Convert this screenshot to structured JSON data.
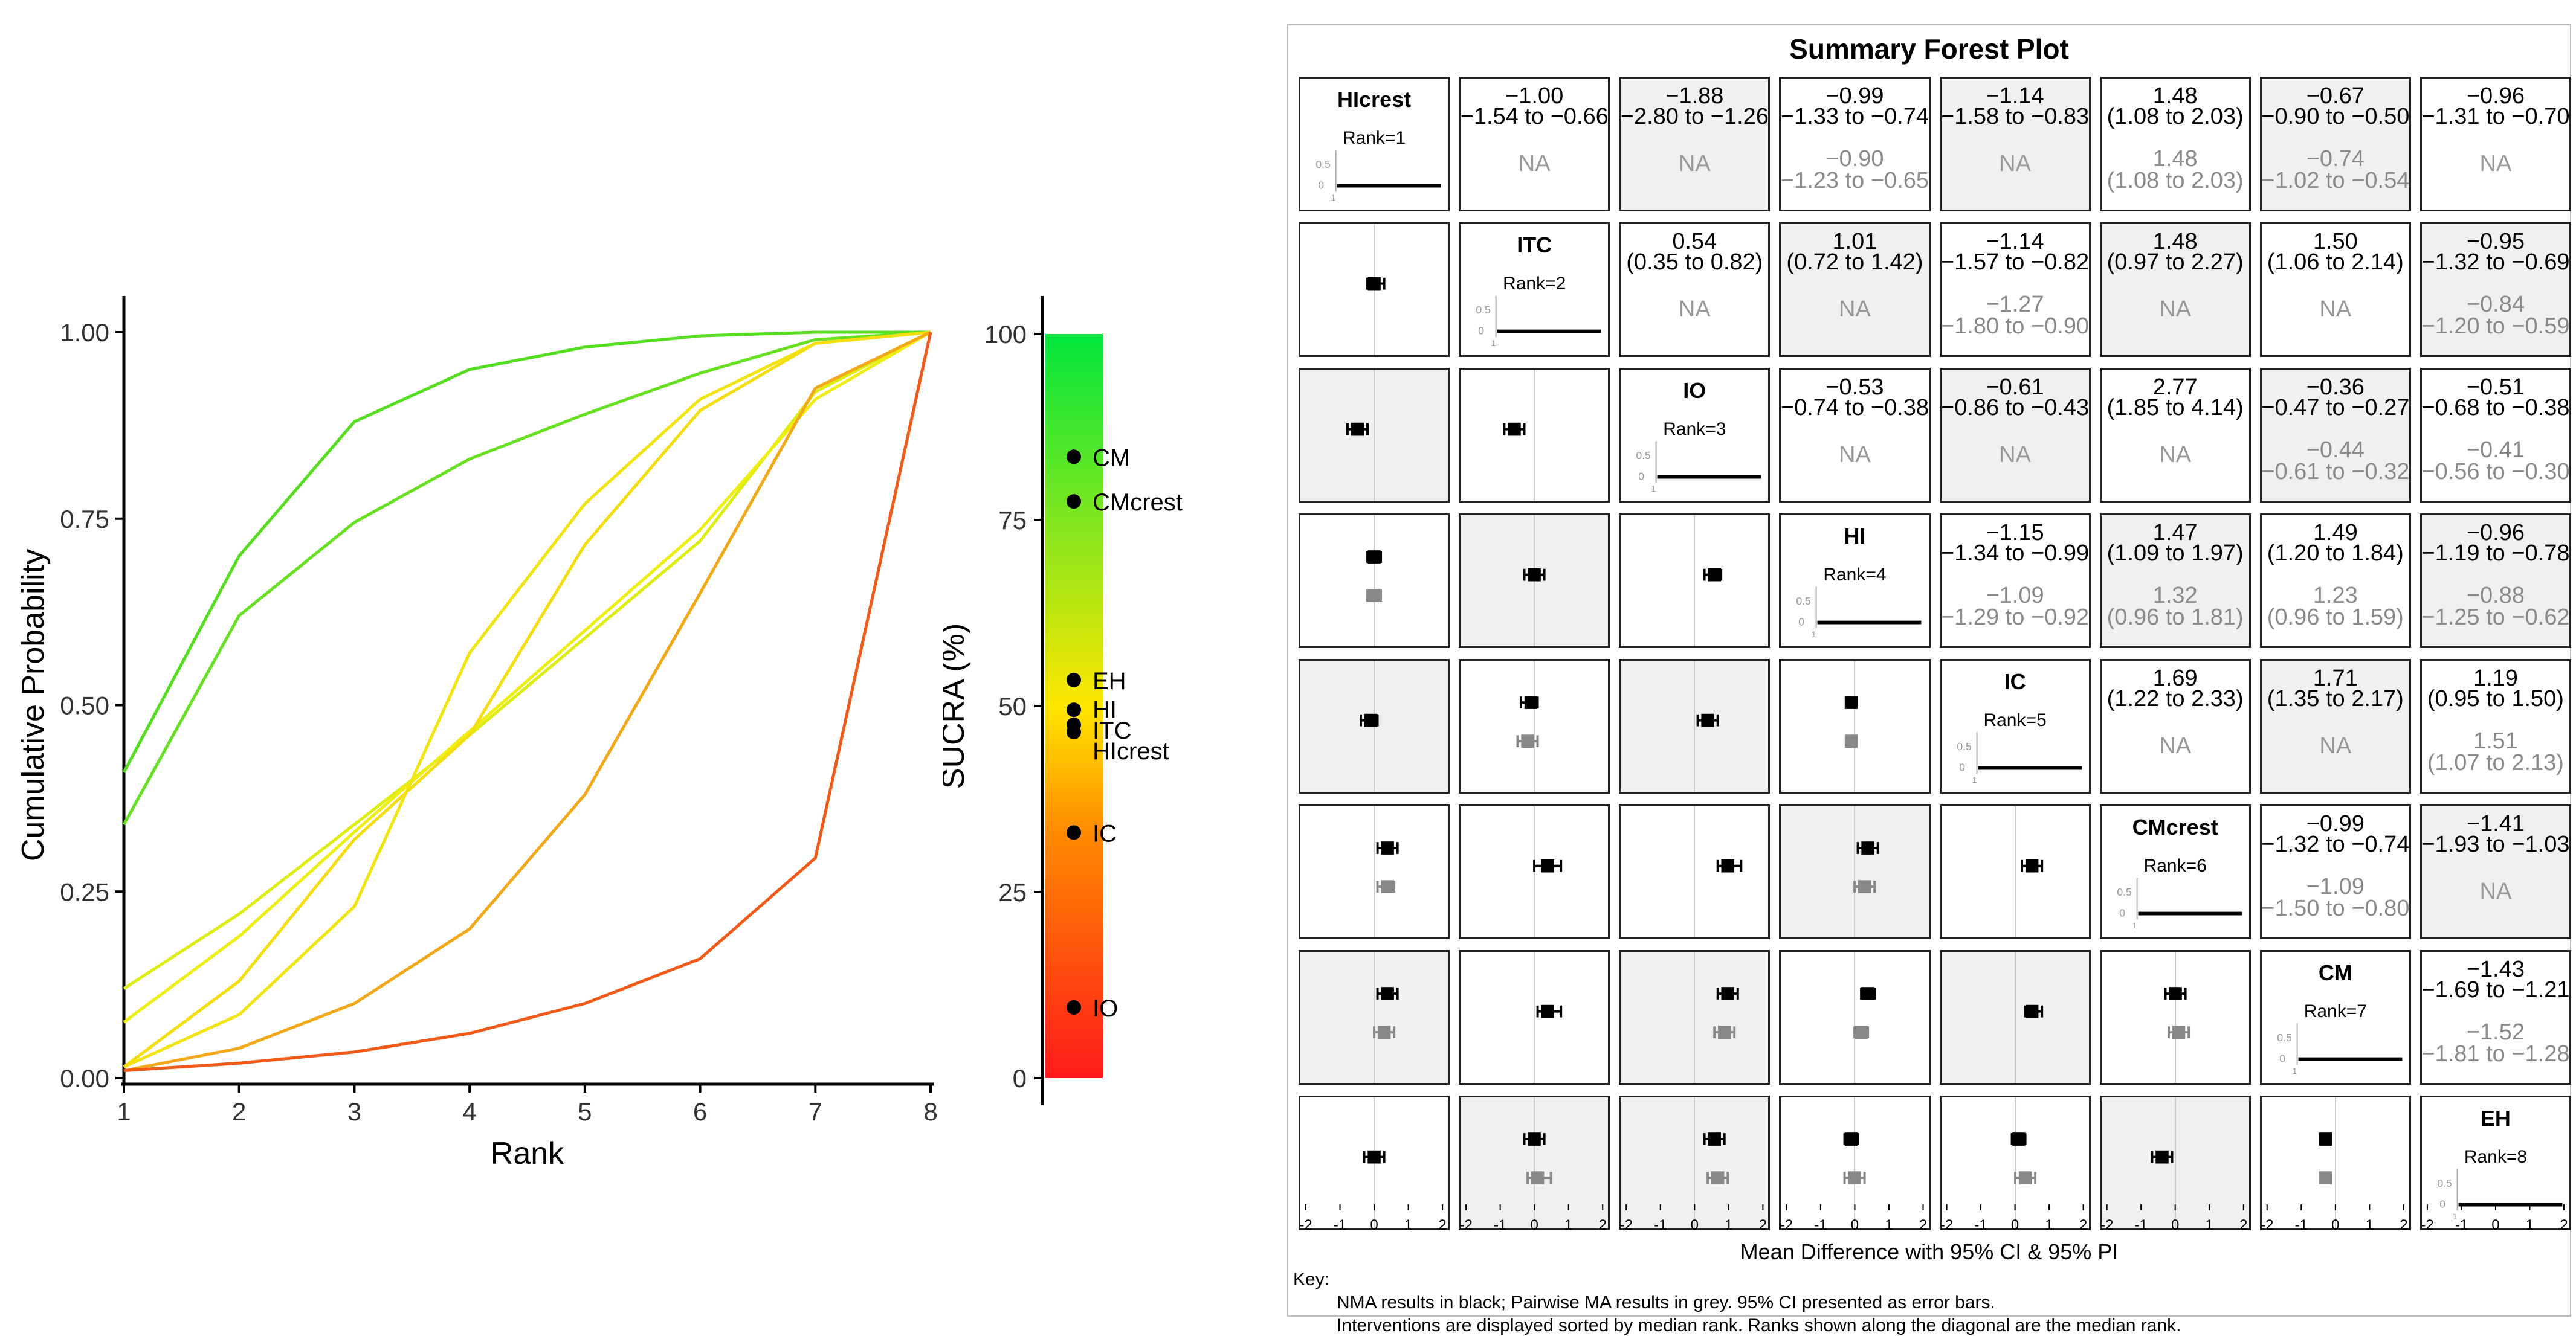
{
  "chart_data": [
    {
      "type": "line",
      "xlabel": "Rank",
      "ylabel": "Cumulative Probability",
      "x": [
        1,
        2,
        3,
        4,
        5,
        6,
        7,
        8
      ],
      "xlim": [
        1,
        8
      ],
      "ylim": [
        0,
        1
      ],
      "x_ticks": [
        "1",
        "2",
        "3",
        "4",
        "5",
        "6",
        "7",
        "8"
      ],
      "y_ticks": [
        "0.00",
        "0.25",
        "0.50",
        "0.75",
        "1.00"
      ],
      "series": [
        {
          "name": "CM",
          "color": "#55dd20",
          "values": [
            0.41,
            0.7,
            0.88,
            0.95,
            0.98,
            0.995,
            1.0,
            1.0
          ]
        },
        {
          "name": "CMcrest",
          "color": "#66e020",
          "values": [
            0.34,
            0.62,
            0.745,
            0.83,
            0.89,
            0.945,
            0.99,
            1.0
          ]
        },
        {
          "name": "EH",
          "color": "#dded10",
          "values": [
            0.12,
            0.22,
            0.34,
            0.46,
            0.59,
            0.72,
            0.92,
            1.0
          ]
        },
        {
          "name": "HI",
          "color": "#eeee10",
          "values": [
            0.075,
            0.19,
            0.33,
            0.465,
            0.6,
            0.735,
            0.91,
            1.0
          ]
        },
        {
          "name": "ITC",
          "color": "#f2e410",
          "values": [
            0.015,
            0.085,
            0.23,
            0.57,
            0.77,
            0.91,
            0.985,
            1.0
          ]
        },
        {
          "name": "HIcrest",
          "color": "#f5de10",
          "values": [
            0.015,
            0.13,
            0.32,
            0.46,
            0.715,
            0.895,
            0.985,
            1.0
          ]
        },
        {
          "name": "IC",
          "color": "#f2a818",
          "values": [
            0.01,
            0.04,
            0.1,
            0.2,
            0.38,
            0.65,
            0.925,
            1.0
          ]
        },
        {
          "name": "IO",
          "color": "#f25a1a",
          "values": [
            0.01,
            0.02,
            0.035,
            0.06,
            0.1,
            0.16,
            0.295,
            1.0
          ]
        }
      ]
    },
    {
      "type": "scatter",
      "ylabel": "SUCRA (%)",
      "ylim": [
        0,
        100
      ],
      "y_ticks": [
        "0",
        "25",
        "50",
        "75",
        "100"
      ],
      "points": [
        {
          "label": "CM",
          "value": 83.5
        },
        {
          "label": "CMcrest",
          "value": 77.5
        },
        {
          "label": "EH",
          "value": 53.5
        },
        {
          "label": "HI",
          "value": 49.5
        },
        {
          "label": "ITC",
          "value": 47.5
        },
        {
          "label": "HIcrest",
          "value": 46.5
        },
        {
          "label": "IC",
          "value": 33
        },
        {
          "label": "IO",
          "value": 9.5
        }
      ]
    },
    {
      "type": "table",
      "title": "Summary Forest Plot",
      "xlabel": "Mean Difference with 95% CI & 95% PI",
      "axis_ticks": [
        "-2",
        "-1",
        "0",
        "1",
        "2"
      ],
      "key": {
        "heading": "Key:",
        "lines": [
          "NMA results in black; Pairwise MA results in grey. 95% CI presented as error bars.",
          "Interventions are displayed sorted by median rank. Ranks shown along the diagonal are the median rank."
        ]
      },
      "diagonal": [
        {
          "name": "HIcrest",
          "rank": "Rank=1"
        },
        {
          "name": "ITC",
          "rank": "Rank=2"
        },
        {
          "name": "IO",
          "rank": "Rank=3"
        },
        {
          "name": "HI",
          "rank": "Rank=4"
        },
        {
          "name": "IC",
          "rank": "Rank=5"
        },
        {
          "name": "CMcrest",
          "rank": "Rank=6"
        },
        {
          "name": "CM",
          "rank": "Rank=7"
        },
        {
          "name": "EH",
          "rank": "Rank=8"
        }
      ],
      "upper": [
        {
          "row": 0,
          "col": 1,
          "nma": "−1.00",
          "nma_ci": "(−1.54 to −0.66)",
          "pw": "NA",
          "pw_ci": "",
          "shade": false
        },
        {
          "row": 0,
          "col": 2,
          "nma": "−1.88",
          "nma_ci": "(−2.80 to −1.26)",
          "pw": "NA",
          "pw_ci": "",
          "shade": true
        },
        {
          "row": 0,
          "col": 3,
          "nma": "−0.99",
          "nma_ci": "(−1.33 to −0.74)",
          "pw": "−0.90",
          "pw_ci": "(−1.23 to −0.65)",
          "shade": false
        },
        {
          "row": 0,
          "col": 4,
          "nma": "−1.14",
          "nma_ci": "(−1.58 to −0.83)",
          "pw": "NA",
          "pw_ci": "",
          "shade": true
        },
        {
          "row": 0,
          "col": 5,
          "nma": "1.48",
          "nma_ci": "(1.08 to 2.03)",
          "pw": "1.48",
          "pw_ci": "(1.08 to 2.03)",
          "shade": false
        },
        {
          "row": 0,
          "col": 6,
          "nma": "−0.67",
          "nma_ci": "(−0.90 to −0.50)",
          "pw": "−0.74",
          "pw_ci": "(−1.02 to −0.54)",
          "shade": true
        },
        {
          "row": 0,
          "col": 7,
          "nma": "−0.96",
          "nma_ci": "(−1.31 to −0.70)",
          "pw": "NA",
          "pw_ci": "",
          "shade": false
        },
        {
          "row": 1,
          "col": 2,
          "nma": "0.54",
          "nma_ci": "(0.35 to 0.82)",
          "pw": "NA",
          "pw_ci": "",
          "shade": false
        },
        {
          "row": 1,
          "col": 3,
          "nma": "1.01",
          "nma_ci": "(0.72 to 1.42)",
          "pw": "NA",
          "pw_ci": "",
          "shade": true
        },
        {
          "row": 1,
          "col": 4,
          "nma": "−1.14",
          "nma_ci": "(−1.57 to −0.82)",
          "pw": "−1.27",
          "pw_ci": "(−1.80 to −0.90)",
          "shade": false
        },
        {
          "row": 1,
          "col": 5,
          "nma": "1.48",
          "nma_ci": "(0.97 to 2.27)",
          "pw": "NA",
          "pw_ci": "",
          "shade": true
        },
        {
          "row": 1,
          "col": 6,
          "nma": "1.50",
          "nma_ci": "(1.06 to 2.14)",
          "pw": "NA",
          "pw_ci": "",
          "shade": false
        },
        {
          "row": 1,
          "col": 7,
          "nma": "−0.95",
          "nma_ci": "(−1.32 to −0.69)",
          "pw": "−0.84",
          "pw_ci": "(−1.20 to −0.59)",
          "shade": true
        },
        {
          "row": 2,
          "col": 3,
          "nma": "−0.53",
          "nma_ci": "(−0.74 to −0.38)",
          "pw": "NA",
          "pw_ci": "",
          "shade": false
        },
        {
          "row": 2,
          "col": 4,
          "nma": "−0.61",
          "nma_ci": "(−0.86 to −0.43)",
          "pw": "NA",
          "pw_ci": "",
          "shade": true
        },
        {
          "row": 2,
          "col": 5,
          "nma": "2.77",
          "nma_ci": "(1.85 to 4.14)",
          "pw": "NA",
          "pw_ci": "",
          "shade": false
        },
        {
          "row": 2,
          "col": 6,
          "nma": "−0.36",
          "nma_ci": "(−0.47 to −0.27)",
          "pw": "−0.44",
          "pw_ci": "(−0.61 to −0.32)",
          "shade": true
        },
        {
          "row": 2,
          "col": 7,
          "nma": "−0.51",
          "nma_ci": "(−0.68 to −0.38)",
          "pw": "−0.41",
          "pw_ci": "(−0.56 to −0.30)",
          "shade": false
        },
        {
          "row": 3,
          "col": 4,
          "nma": "−1.15",
          "nma_ci": "(−1.34 to −0.99)",
          "pw": "−1.09",
          "pw_ci": "(−1.29 to −0.92)",
          "shade": false
        },
        {
          "row": 3,
          "col": 5,
          "nma": "1.47",
          "nma_ci": "(1.09 to 1.97)",
          "pw": "1.32",
          "pw_ci": "(0.96 to 1.81)",
          "shade": true
        },
        {
          "row": 3,
          "col": 6,
          "nma": "1.49",
          "nma_ci": "(1.20 to 1.84)",
          "pw": "1.23",
          "pw_ci": "(0.96 to 1.59)",
          "shade": false
        },
        {
          "row": 3,
          "col": 7,
          "nma": "−0.96",
          "nma_ci": "(−1.19 to −0.78)",
          "pw": "−0.88",
          "pw_ci": "(−1.25 to −0.62)",
          "shade": true
        },
        {
          "row": 4,
          "col": 5,
          "nma": "1.69",
          "nma_ci": "(1.22 to 2.33)",
          "pw": "NA",
          "pw_ci": "",
          "shade": false
        },
        {
          "row": 4,
          "col": 6,
          "nma": "1.71",
          "nma_ci": "(1.35 to 2.17)",
          "pw": "NA",
          "pw_ci": "",
          "shade": true
        },
        {
          "row": 4,
          "col": 7,
          "nma": "1.19",
          "nma_ci": "(0.95 to 1.50)",
          "pw": "1.51",
          "pw_ci": "(1.07 to 2.13)",
          "shade": false
        },
        {
          "row": 5,
          "col": 6,
          "nma": "−0.99",
          "nma_ci": "(−1.32 to −0.74)",
          "pw": "−1.09",
          "pw_ci": "(−1.50 to −0.80)",
          "shade": false
        },
        {
          "row": 5,
          "col": 7,
          "nma": "−1.41",
          "nma_ci": "(−1.93 to −1.03)",
          "pw": "NA",
          "pw_ci": "",
          "shade": true
        },
        {
          "row": 6,
          "col": 7,
          "nma": "−1.43",
          "nma_ci": "(−1.69 to −1.21)",
          "pw": "−1.52",
          "pw_ci": "(−1.81 to −1.28)",
          "shade": false
        }
      ],
      "lower": [
        {
          "row": 1,
          "col": 0,
          "nma": [
            0.0,
            -0.2,
            0.3
          ],
          "pw": null,
          "shade": false
        },
        {
          "row": 2,
          "col": 0,
          "nma": [
            -0.5,
            -0.8,
            -0.2
          ],
          "pw": null,
          "shade": true
        },
        {
          "row": 2,
          "col": 1,
          "nma": [
            -0.6,
            -0.9,
            -0.3
          ],
          "pw": null,
          "shade": false
        },
        {
          "row": 3,
          "col": 0,
          "nma": [
            0.0,
            -0.2,
            0.2
          ],
          "pw": [
            0.0,
            -0.2,
            0.2
          ],
          "shade": false
        },
        {
          "row": 3,
          "col": 1,
          "nma": [
            0.0,
            -0.3,
            0.3
          ],
          "pw": null,
          "shade": true
        },
        {
          "row": 3,
          "col": 2,
          "nma": [
            0.6,
            0.3,
            0.8
          ],
          "pw": null,
          "shade": false
        },
        {
          "row": 4,
          "col": 0,
          "nma": [
            -0.1,
            -0.4,
            0.1
          ],
          "pw": null,
          "shade": true
        },
        {
          "row": 4,
          "col": 1,
          "nma": [
            -0.1,
            -0.4,
            0.1
          ],
          "pw": [
            -0.2,
            -0.5,
            0.1
          ],
          "shade": false
        },
        {
          "row": 4,
          "col": 2,
          "nma": [
            0.4,
            0.1,
            0.7
          ],
          "pw": null,
          "shade": true
        },
        {
          "row": 4,
          "col": 3,
          "nma": [
            -0.1,
            -0.2,
            0.0
          ],
          "pw": [
            -0.1,
            -0.2,
            0.0
          ],
          "shade": false
        },
        {
          "row": 5,
          "col": 0,
          "nma": [
            0.4,
            0.1,
            0.7
          ],
          "pw": [
            0.4,
            0.1,
            0.6
          ],
          "shade": false
        },
        {
          "row": 5,
          "col": 1,
          "nma": [
            0.4,
            0.0,
            0.8
          ],
          "pw": null,
          "shade": false
        },
        {
          "row": 5,
          "col": 2,
          "nma": [
            1.0,
            0.7,
            1.4
          ],
          "pw": null,
          "shade": false
        },
        {
          "row": 5,
          "col": 3,
          "nma": [
            0.4,
            0.1,
            0.7
          ],
          "pw": [
            0.3,
            0.0,
            0.6
          ],
          "shade": true
        },
        {
          "row": 5,
          "col": 4,
          "nma": [
            0.5,
            0.2,
            0.8
          ],
          "pw": null,
          "shade": false
        },
        {
          "row": 6,
          "col": 0,
          "nma": [
            0.4,
            0.1,
            0.7
          ],
          "pw": [
            0.3,
            0.0,
            0.6
          ],
          "shade": true
        },
        {
          "row": 6,
          "col": 1,
          "nma": [
            0.4,
            0.1,
            0.8
          ],
          "pw": null,
          "shade": false
        },
        {
          "row": 6,
          "col": 2,
          "nma": [
            1.0,
            0.7,
            1.3
          ],
          "pw": [
            0.9,
            0.6,
            1.2
          ],
          "shade": true
        },
        {
          "row": 6,
          "col": 3,
          "nma": [
            0.4,
            0.2,
            0.6
          ],
          "pw": [
            0.2,
            0.0,
            0.4
          ],
          "shade": false
        },
        {
          "row": 6,
          "col": 4,
          "nma": [
            0.5,
            0.3,
            0.8
          ],
          "pw": null,
          "shade": true
        },
        {
          "row": 6,
          "col": 5,
          "nma": [
            0.0,
            -0.3,
            0.3
          ],
          "pw": [
            0.1,
            -0.2,
            0.4
          ],
          "shade": false
        },
        {
          "row": 7,
          "col": 0,
          "nma": [
            0.0,
            -0.3,
            0.3
          ],
          "pw": null,
          "shade": false
        },
        {
          "row": 7,
          "col": 1,
          "nma": [
            0.0,
            -0.3,
            0.3
          ],
          "pw": [
            0.1,
            -0.2,
            0.5
          ],
          "shade": true
        },
        {
          "row": 7,
          "col": 2,
          "nma": [
            0.6,
            0.3,
            0.9
          ],
          "pw": [
            0.7,
            0.4,
            1.0
          ],
          "shade": true
        },
        {
          "row": 7,
          "col": 3,
          "nma": [
            -0.1,
            -0.3,
            0.1
          ],
          "pw": [
            0.0,
            -0.3,
            0.3
          ],
          "shade": false
        },
        {
          "row": 7,
          "col": 4,
          "nma": [
            0.1,
            -0.1,
            0.3
          ],
          "pw": [
            0.3,
            0.0,
            0.6
          ],
          "shade": false
        },
        {
          "row": 7,
          "col": 5,
          "nma": [
            -0.4,
            -0.7,
            -0.1
          ],
          "pw": null,
          "shade": true
        },
        {
          "row": 7,
          "col": 6,
          "nma": [
            -0.3,
            -0.4,
            -0.2
          ],
          "pw": [
            -0.3,
            -0.4,
            -0.2
          ],
          "shade": false
        }
      ]
    }
  ]
}
